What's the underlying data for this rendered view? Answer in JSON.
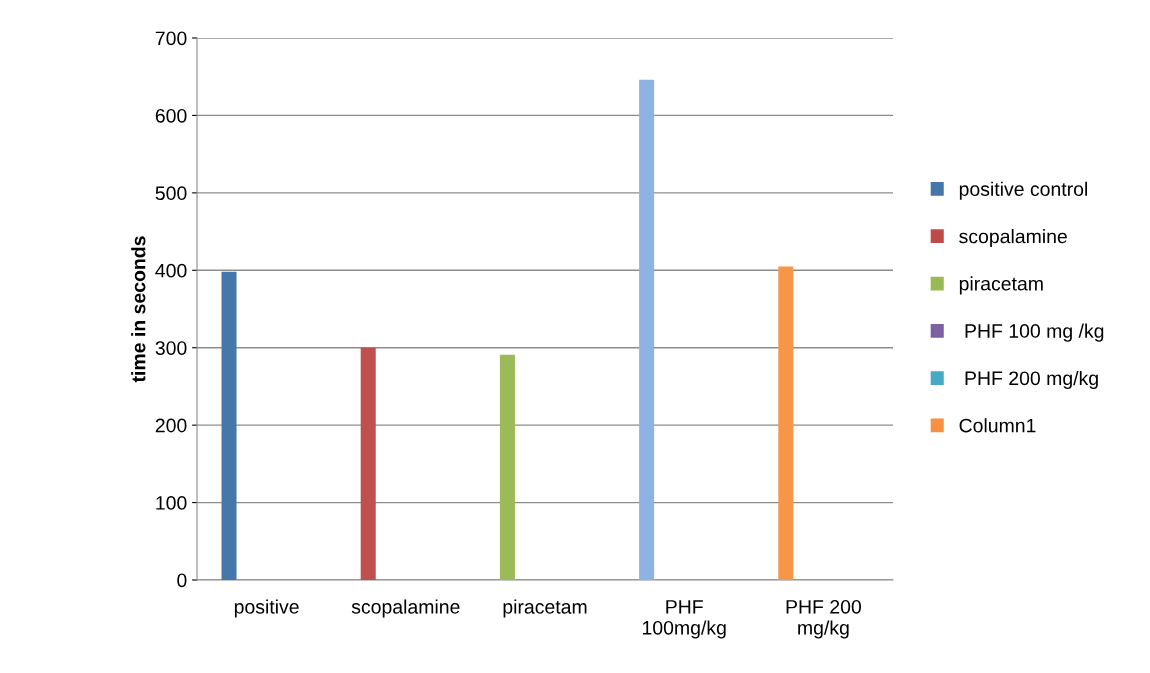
{
  "chart_data": {
    "type": "bar",
    "ylabel": "time in seconds",
    "categories": [
      "positive",
      "scopalamine",
      "piracetam",
      "PHF\n100mg/kg",
      "PHF 200\nmg/kg"
    ],
    "series": [
      {
        "name": "positive control",
        "color": "#4677aa",
        "colors": [
          "#4677aa",
          "#c0504d",
          "#9bbb59",
          "#8db3e2",
          "#f79646"
        ],
        "values": [
          398,
          300,
          291,
          646,
          405
        ]
      },
      {
        "name": "scopalamine",
        "color": "#be4b48",
        "values": [
          null,
          null,
          null,
          null,
          null
        ]
      },
      {
        "name": "piracetam",
        "color": "#98b954",
        "values": [
          null,
          null,
          null,
          null,
          null
        ]
      },
      {
        "name": " PHF 100 mg /kg",
        "color": "#7d60a0",
        "values": [
          null,
          null,
          null,
          null,
          null
        ]
      },
      {
        "name": " PHF 200 mg/kg",
        "color": "#46aac5",
        "values": [
          null,
          null,
          null,
          null,
          null
        ]
      },
      {
        "name": "Column1",
        "color": "#f69240",
        "values": [
          null,
          null,
          null,
          null,
          null
        ]
      }
    ],
    "ylim": [
      0,
      700
    ],
    "yticks": [
      0,
      100,
      200,
      300,
      400,
      500,
      600,
      700
    ],
    "grid": "y",
    "legend": "right"
  }
}
